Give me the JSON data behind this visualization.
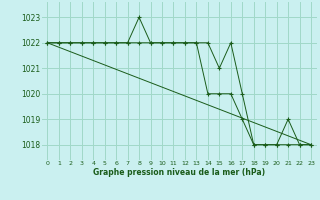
{
  "title": "Graphe pression niveau de la mer (hPa)",
  "bg_color": "#caf0f0",
  "grid_color": "#a0d8c8",
  "line_color": "#1a5c1a",
  "marker_color": "#1a5c1a",
  "xlim": [
    -0.5,
    23.5
  ],
  "ylim": [
    1017.4,
    1023.6
  ],
  "yticks": [
    1018,
    1019,
    1020,
    1021,
    1022,
    1023
  ],
  "xticks": [
    0,
    1,
    2,
    3,
    4,
    5,
    6,
    7,
    8,
    9,
    10,
    11,
    12,
    13,
    14,
    15,
    16,
    17,
    18,
    19,
    20,
    21,
    22,
    23
  ],
  "series1": [
    1022,
    1022,
    1022,
    1022,
    1022,
    1022,
    1022,
    1022,
    1023,
    1022,
    1022,
    1022,
    1022,
    1022,
    1022,
    1021,
    1022,
    1020,
    1018,
    1018,
    1018,
    1019,
    1018,
    1018
  ],
  "series2": [
    1022,
    1022,
    1022,
    1022,
    1022,
    1022,
    1022,
    1022,
    1022,
    1022,
    1022,
    1022,
    1022,
    1022,
    1020,
    1020,
    1020,
    1019,
    1018,
    1018,
    1018,
    1018,
    1018,
    1018
  ],
  "trend_x": [
    0,
    23
  ],
  "trend_y": [
    1022.0,
    1018.0
  ]
}
